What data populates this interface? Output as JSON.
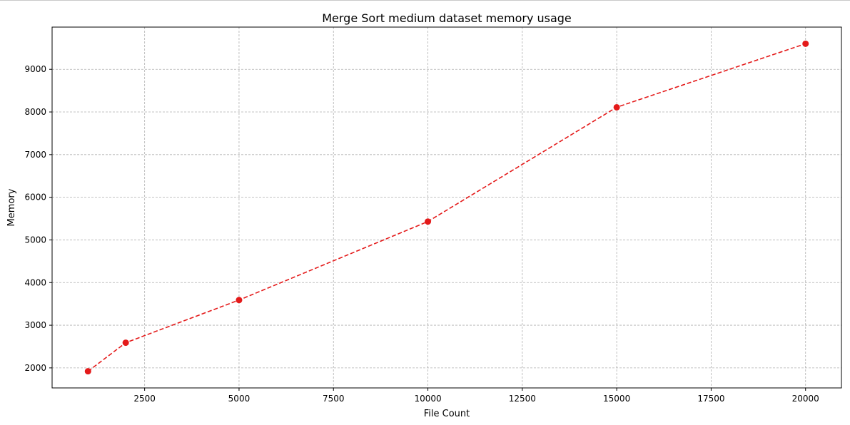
{
  "chart_data": {
    "type": "line",
    "title": "Merge Sort medium dataset memory usage",
    "xlabel": "File Count",
    "ylabel": "Memory",
    "x": [
      1000,
      2000,
      5000,
      10000,
      15000,
      20000
    ],
    "series": [
      {
        "values": [
          1920,
          2590,
          3590,
          5430,
          8110,
          9600
        ],
        "color": "#e41a1a",
        "line_style": "dashed",
        "marker": "circle"
      }
    ],
    "xlim": [
      50,
      20950
    ],
    "ylim": [
      1530,
      9990
    ],
    "xticks": [
      2500,
      5000,
      7500,
      10000,
      12500,
      15000,
      17500,
      20000
    ],
    "yticks": [
      2000,
      3000,
      4000,
      5000,
      6000,
      7000,
      8000,
      9000
    ],
    "xtick_labels": [
      "2500",
      "5000",
      "7500",
      "10000",
      "12500",
      "15000",
      "17500",
      "20000"
    ],
    "ytick_labels": [
      "2000",
      "3000",
      "4000",
      "5000",
      "6000",
      "7000",
      "8000",
      "9000"
    ],
    "grid": true
  }
}
